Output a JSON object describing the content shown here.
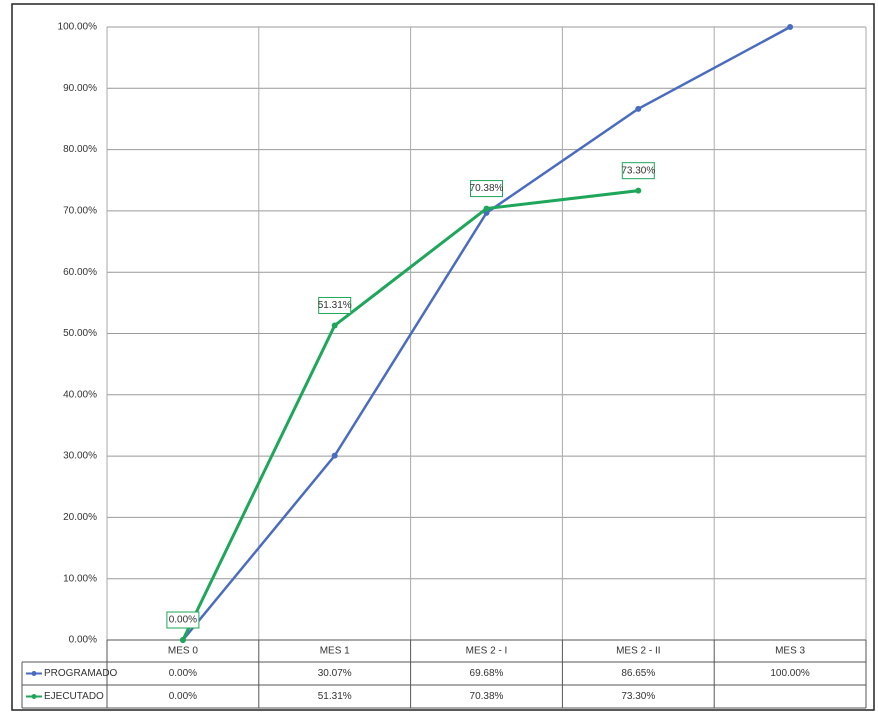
{
  "chart_data": {
    "type": "line",
    "categories": [
      "MES 0",
      "MES 1",
      "MES 2 - I",
      "MES 2 - II",
      "MES 3"
    ],
    "series": [
      {
        "name": "PROGRAMADO",
        "color": "#4a6cc0",
        "values": [
          0,
          30.07,
          69.68,
          86.65,
          100
        ],
        "value_labels": [
          "0.00%",
          "30.07%",
          "69.68%",
          "86.65%",
          "100.00%"
        ]
      },
      {
        "name": "EJECUTADO",
        "color": "#1ea65a",
        "values": [
          0,
          51.31,
          70.38,
          73.3,
          null
        ],
        "value_labels": [
          "0.00%",
          "51.31%",
          "70.38%",
          "73.30%",
          null
        ]
      }
    ],
    "ylim": [
      0,
      100
    ],
    "yticks": [
      {
        "value": 0,
        "label": "0.00%"
      },
      {
        "value": 10,
        "label": "10.00%"
      },
      {
        "value": 20,
        "label": "20.00%"
      },
      {
        "value": 30,
        "label": "30.00%"
      },
      {
        "value": 40,
        "label": "40.00%"
      },
      {
        "value": 50,
        "label": "50.00%"
      },
      {
        "value": 60,
        "label": "60.00%"
      },
      {
        "value": 70,
        "label": "70.00%"
      },
      {
        "value": 80,
        "label": "80.00%"
      },
      {
        "value": 90,
        "label": "90.00%"
      },
      {
        "value": 100,
        "label": "100.00%"
      }
    ],
    "grid": true,
    "data_labels_series": 1
  }
}
